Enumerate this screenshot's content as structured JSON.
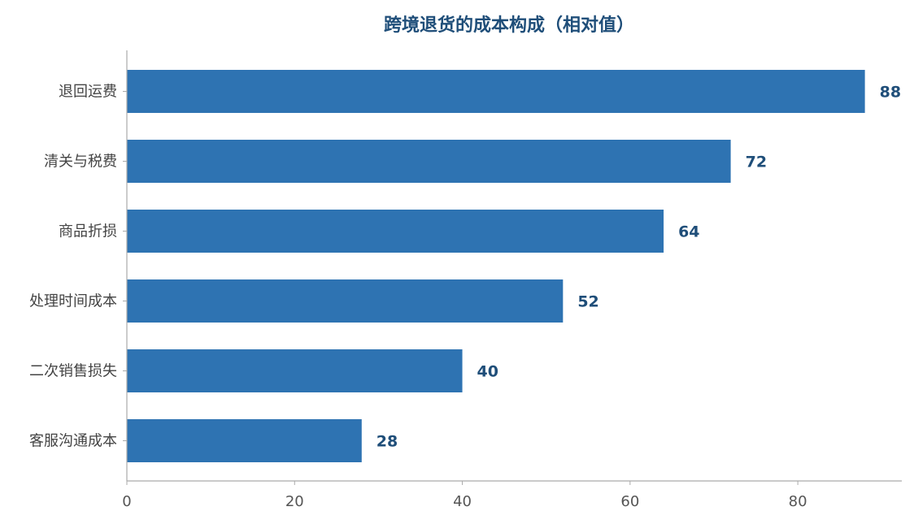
{
  "chart_data": {
    "type": "bar",
    "orientation": "horizontal",
    "title": "跨境退货的成本构成（相对值）",
    "categories": [
      "退回运费",
      "清关与税费",
      "商品折损",
      "处理时间成本",
      "二次销售损失",
      "客服沟通成本"
    ],
    "values": [
      88,
      72,
      64,
      52,
      40,
      28
    ],
    "xlim": [
      0,
      92.4
    ],
    "xticks": [
      0,
      20,
      40,
      60,
      80
    ],
    "grid": false,
    "legend": "none",
    "colors": {
      "bar": "#2e73b2",
      "title": "#1f4e79",
      "value_label": "#1f4e79",
      "axis": "#aaaaaa"
    }
  }
}
